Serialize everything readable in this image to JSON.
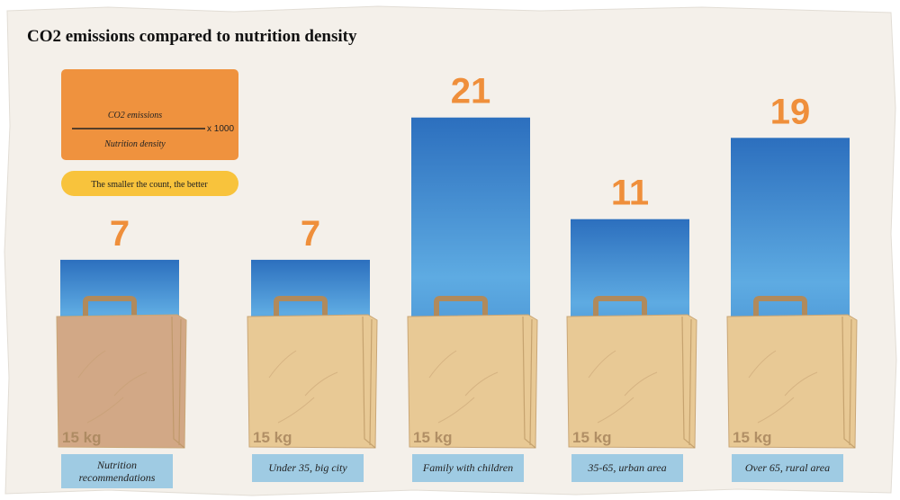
{
  "chart_data": {
    "type": "bar",
    "title": "CO2 emissions compared to nutrition density",
    "formula": {
      "numerator": "CO2 emissions",
      "denominator": "Nutrition density",
      "multiplier": "x 1000"
    },
    "note": "The smaller the count, the better",
    "categories": [
      "Nutrition recommendations",
      "Under 35, big city",
      "Family with children",
      "35-65, urban area",
      "Over 65, rural area"
    ],
    "values": [
      7,
      7,
      21,
      11,
      19
    ],
    "bag_labels": [
      "15 kg",
      "15 kg",
      "15 kg",
      "15 kg",
      "15 kg"
    ],
    "color": "#3a82cc",
    "value_label_color": "#ef8f3b",
    "bag_colors": [
      "#d2a886",
      "#e8c995",
      "#e8c995",
      "#e8c995",
      "#e8c995"
    ]
  }
}
